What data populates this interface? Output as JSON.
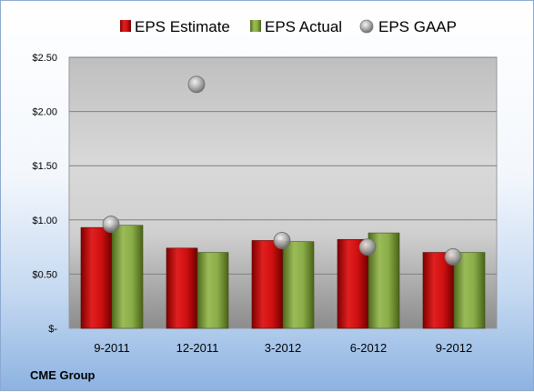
{
  "chart_data": {
    "type": "bar",
    "categories": [
      "9-2011",
      "12-2011",
      "3-2012",
      "6-2012",
      "9-2012"
    ],
    "series": [
      {
        "name": "EPS Estimate",
        "kind": "bar",
        "color": "#c00000",
        "values": [
          0.93,
          0.74,
          0.81,
          0.82,
          0.7
        ]
      },
      {
        "name": "EPS Actual",
        "kind": "bar",
        "color": "#7a9a3a",
        "values": [
          0.95,
          0.7,
          0.8,
          0.88,
          0.7
        ]
      },
      {
        "name": "EPS GAAP",
        "kind": "marker",
        "color": "#a6a6a6",
        "values": [
          0.96,
          2.25,
          0.81,
          0.75,
          0.66
        ]
      }
    ],
    "yticks": [
      {
        "value": 0,
        "label": "$-"
      },
      {
        "value": 0.5,
        "label": "$0.50"
      },
      {
        "value": 1.0,
        "label": "$1.00"
      },
      {
        "value": 1.5,
        "label": "$1.50"
      },
      {
        "value": 2.0,
        "label": "$2.00"
      },
      {
        "value": 2.5,
        "label": "$2.50"
      }
    ],
    "ylim": [
      0,
      2.5
    ],
    "grid": true,
    "legend_position": "top",
    "footer": "CME Group"
  }
}
